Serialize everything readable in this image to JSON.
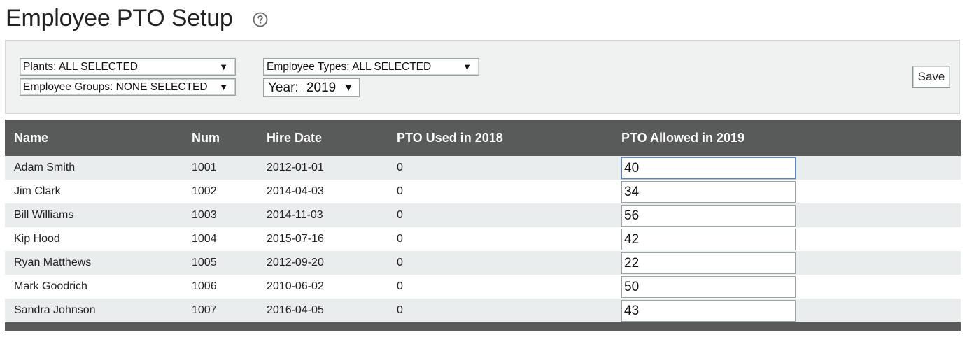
{
  "page": {
    "title": "Employee PTO Setup",
    "help_icon": "question-circle-icon"
  },
  "filters": {
    "plants": "Plants: ALL SELECTED",
    "employee_groups": "Employee Groups: NONE SELECTED",
    "employee_types": "Employee Types: ALL SELECTED",
    "year_label": "Year:",
    "year_value": "2019",
    "dropdown_arrow": "▼",
    "save_label": "Save"
  },
  "table": {
    "headers": [
      "Name",
      "Num",
      "Hire Date",
      "PTO Used in 2018",
      "PTO Allowed in 2019"
    ],
    "rows": [
      {
        "name": "Adam Smith",
        "num": "1001",
        "hire_date": "2012-01-01",
        "pto_used": "0",
        "pto_allowed": "40"
      },
      {
        "name": "Jim Clark",
        "num": "1002",
        "hire_date": "2014-04-03",
        "pto_used": "0",
        "pto_allowed": "34"
      },
      {
        "name": "Bill Williams",
        "num": "1003",
        "hire_date": "2014-11-03",
        "pto_used": "0",
        "pto_allowed": "56"
      },
      {
        "name": "Kip Hood",
        "num": "1004",
        "hire_date": "2015-07-16",
        "pto_used": "0",
        "pto_allowed": "42"
      },
      {
        "name": "Ryan Matthews",
        "num": "1005",
        "hire_date": "2012-09-20",
        "pto_used": "0",
        "pto_allowed": "22"
      },
      {
        "name": "Mark Goodrich",
        "num": "1006",
        "hire_date": "2010-06-02",
        "pto_used": "0",
        "pto_allowed": "50"
      },
      {
        "name": "Sandra Johnson",
        "num": "1007",
        "hire_date": "2016-04-05",
        "pto_used": "0",
        "pto_allowed": "43"
      }
    ]
  },
  "colors": {
    "header_bg": "#595a5a",
    "row_alt_bg": "#e9eded",
    "panel_bg": "#f0f1f1"
  }
}
